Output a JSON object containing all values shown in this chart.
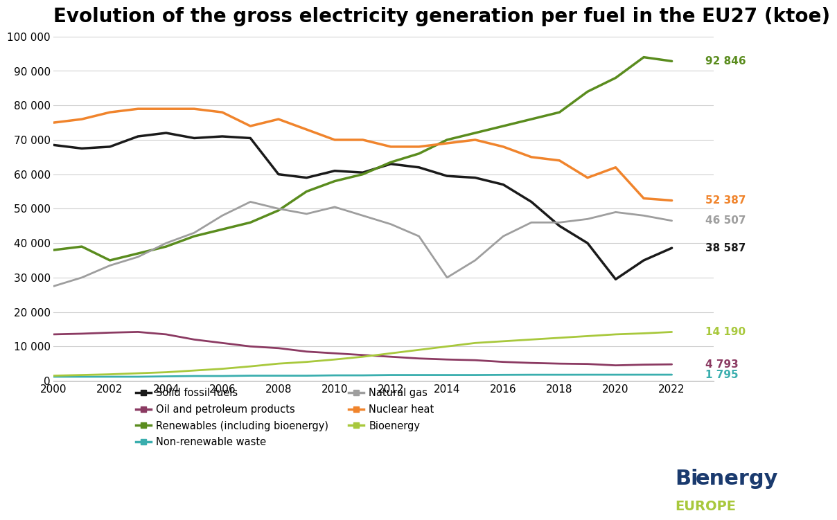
{
  "title": "Evolution of the gross electricity generation per fuel in the EU27 (ktoe)",
  "years": [
    2000,
    2001,
    2002,
    2003,
    2004,
    2005,
    2006,
    2007,
    2008,
    2009,
    2010,
    2011,
    2012,
    2013,
    2014,
    2015,
    2016,
    2017,
    2018,
    2019,
    2020,
    2021,
    2022
  ],
  "series": {
    "Solid fossil fuels": {
      "color": "#1a1a1a",
      "values": [
        68500,
        67500,
        68000,
        71000,
        72000,
        70500,
        71000,
        70500,
        60000,
        59000,
        61000,
        60500,
        63000,
        62000,
        59500,
        59000,
        57000,
        52000,
        45000,
        40000,
        29500,
        35000,
        38587
      ]
    },
    "Oil and petroleum products": {
      "color": "#8B3A62",
      "values": [
        13500,
        13700,
        14000,
        14200,
        13500,
        12000,
        11000,
        10000,
        9500,
        8500,
        8000,
        7500,
        7000,
        6500,
        6200,
        6000,
        5500,
        5200,
        5000,
        4900,
        4500,
        4700,
        4793
      ]
    },
    "Renewables (including bioenergy)": {
      "color": "#5a8c1e",
      "values": [
        38000,
        39000,
        35000,
        37000,
        39000,
        42000,
        44000,
        46000,
        49500,
        55000,
        58000,
        60000,
        63500,
        66000,
        70000,
        72000,
        74000,
        76000,
        78000,
        84000,
        88000,
        94000,
        92846
      ]
    },
    "Non-renewable waste": {
      "color": "#3aaeae",
      "values": [
        1200,
        1200,
        1200,
        1200,
        1300,
        1400,
        1400,
        1500,
        1500,
        1500,
        1600,
        1600,
        1700,
        1700,
        1700,
        1700,
        1750,
        1780,
        1780,
        1790,
        1790,
        1795,
        1795
      ]
    },
    "Natural gas": {
      "color": "#9e9e9e",
      "values": [
        27500,
        30000,
        33500,
        36000,
        40000,
        43000,
        48000,
        52000,
        50000,
        48500,
        50500,
        48000,
        45500,
        42000,
        30000,
        35000,
        42000,
        46000,
        46000,
        47000,
        49000,
        48000,
        46507
      ]
    },
    "Nuclear heat": {
      "color": "#f0842c",
      "values": [
        75000,
        76000,
        78000,
        79000,
        79000,
        79000,
        78000,
        74000,
        76000,
        73000,
        70000,
        70000,
        68000,
        68000,
        69000,
        70000,
        68000,
        65000,
        64000,
        59000,
        62000,
        53000,
        52387
      ]
    },
    "Bioenergy": {
      "color": "#a8c83c",
      "values": [
        1500,
        1700,
        1900,
        2200,
        2500,
        3000,
        3500,
        4200,
        5000,
        5500,
        6200,
        7000,
        8000,
        9000,
        10000,
        11000,
        11500,
        12000,
        12500,
        13000,
        13500,
        13800,
        14190
      ]
    }
  },
  "annotations": {
    "92 846": {
      "color": "#5a8c1e",
      "y": 92846
    },
    "52 387": {
      "color": "#f0842c",
      "y": 52387
    },
    "46 507": {
      "color": "#9e9e9e",
      "y": 46507
    },
    "38 587": {
      "color": "#1a1a1a",
      "y": 38587
    },
    "14 190": {
      "color": "#a8c83c",
      "y": 14190
    },
    "4 793": {
      "color": "#8B3A62",
      "y": 4793
    },
    "1 795": {
      "color": "#3aaeae",
      "y": 1795
    }
  },
  "ylim": [
    0,
    100000
  ],
  "yticks": [
    0,
    10000,
    20000,
    30000,
    40000,
    50000,
    60000,
    70000,
    80000,
    90000,
    100000
  ],
  "ytick_labels": [
    "0",
    "10 000",
    "20 000",
    "30 000",
    "40 000",
    "50 000",
    "60 000",
    "70 000",
    "80 000",
    "90 000",
    "100 000"
  ],
  "background_color": "#ffffff",
  "title_fontsize": 20
}
